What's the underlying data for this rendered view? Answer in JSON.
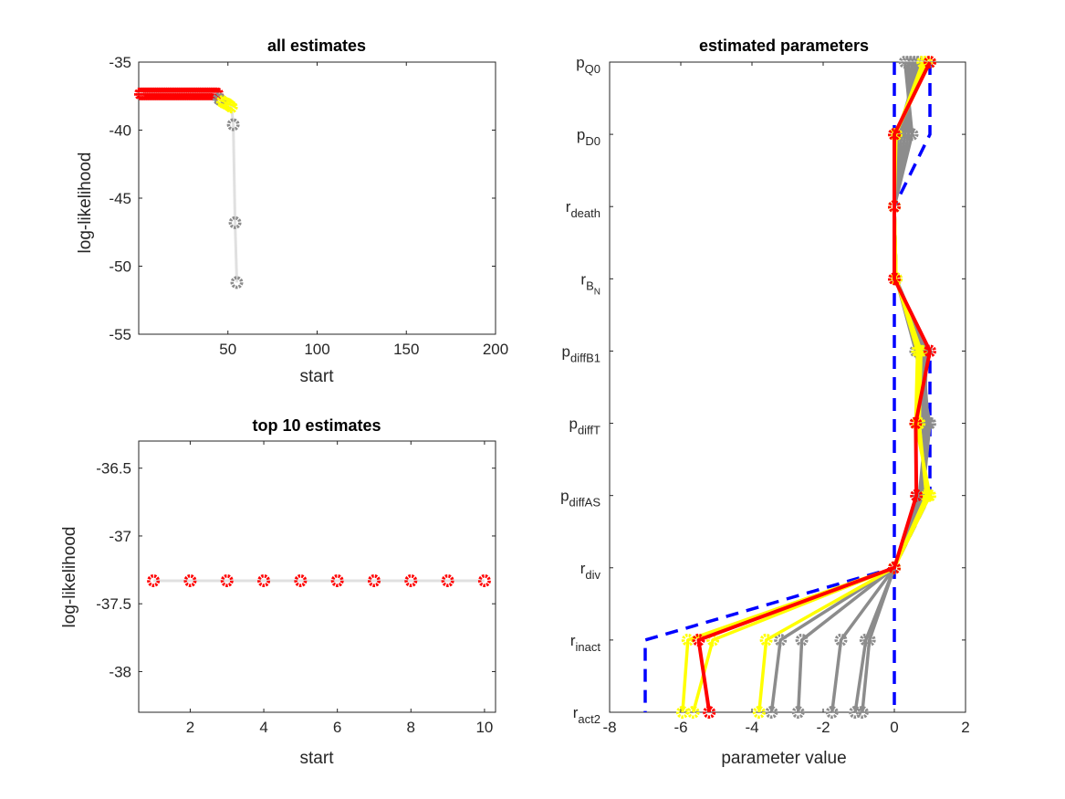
{
  "colors": {
    "red": "#ff0000",
    "yellow": "#ffff00",
    "gray": "#8c8c8c",
    "lightgray": "#e0e0e0",
    "blue": "#0000ff"
  },
  "chart_data": [
    {
      "type": "line",
      "title": "all estimates",
      "xlabel": "start",
      "ylabel": "log-likelihood",
      "xlim": [
        0,
        200
      ],
      "ylim": [
        -55,
        -35
      ],
      "xticks": [
        50,
        100,
        150,
        200
      ],
      "yticks": [
        -35,
        -40,
        -45,
        -50,
        -55
      ],
      "series": [
        {
          "color_role": "red",
          "x": [
            1,
            2,
            3,
            4,
            5,
            6,
            7,
            8,
            9,
            10,
            11,
            12,
            13,
            14,
            15,
            16,
            17,
            18,
            19,
            20,
            21,
            22,
            23,
            24,
            25,
            26,
            27,
            28,
            29,
            30,
            31,
            32,
            33,
            34,
            35,
            36,
            37,
            38,
            39,
            40,
            41,
            42,
            43,
            44
          ],
          "y": [
            -37.33,
            -37.33,
            -37.33,
            -37.33,
            -37.33,
            -37.33,
            -37.33,
            -37.33,
            -37.33,
            -37.33,
            -37.33,
            -37.33,
            -37.33,
            -37.33,
            -37.33,
            -37.33,
            -37.33,
            -37.33,
            -37.33,
            -37.33,
            -37.33,
            -37.33,
            -37.33,
            -37.33,
            -37.33,
            -37.33,
            -37.33,
            -37.33,
            -37.33,
            -37.33,
            -37.33,
            -37.33,
            -37.33,
            -37.33,
            -37.33,
            -37.33,
            -37.33,
            -37.33,
            -37.33,
            -37.33,
            -37.33,
            -37.33,
            -37.33,
            -37.33
          ]
        },
        {
          "color_role": "gray",
          "x": [
            45,
            46
          ],
          "y": [
            -37.7,
            -37.8
          ]
        },
        {
          "color_role": "yellow",
          "x": [
            47,
            48,
            49,
            50,
            51,
            52
          ],
          "y": [
            -37.9,
            -38.0,
            -38.05,
            -38.1,
            -38.2,
            -38.3
          ]
        },
        {
          "color_role": "gray",
          "x": [
            53,
            54,
            55
          ],
          "y": [
            -39.6,
            -46.8,
            -51.2
          ]
        }
      ]
    },
    {
      "type": "line",
      "title": "top 10 estimates",
      "xlabel": "start",
      "ylabel": "log-likelihood",
      "xlim": [
        0.6,
        10.3
      ],
      "ylim": [
        -38.3,
        -36.3
      ],
      "xticks": [
        2,
        4,
        6,
        8,
        10
      ],
      "yticks": [
        -36.5,
        -37,
        -37.5,
        -38
      ],
      "series": [
        {
          "color_role": "red",
          "x": [
            1,
            2,
            3,
            4,
            5,
            6,
            7,
            8,
            9,
            10
          ],
          "y": [
            -37.33,
            -37.33,
            -37.33,
            -37.33,
            -37.33,
            -37.33,
            -37.33,
            -37.33,
            -37.33,
            -37.33
          ]
        }
      ]
    },
    {
      "type": "line",
      "title": "estimated parameters",
      "xlabel": "parameter value",
      "xlim": [
        -8,
        2
      ],
      "xticks": [
        -8,
        -6,
        -4,
        -2,
        0,
        2
      ],
      "parameters": [
        {
          "base": "p",
          "sub": "Q0"
        },
        {
          "base": "p",
          "sub": "D0"
        },
        {
          "base": "r",
          "sub": "death"
        },
        {
          "base": "r",
          "sub": "B",
          "subsub": "N"
        },
        {
          "base": "p",
          "sub": "diffB1"
        },
        {
          "base": "p",
          "sub": "diffT"
        },
        {
          "base": "p",
          "sub": "diffAS"
        },
        {
          "base": "r",
          "sub": "div"
        },
        {
          "base": "r",
          "sub": "inact"
        },
        {
          "base": "r",
          "sub": "act2"
        }
      ],
      "bounds": {
        "lower": [
          0,
          0,
          0,
          0,
          0,
          0,
          0,
          0,
          0,
          0
        ],
        "upper": [
          1,
          1,
          0,
          0,
          1,
          1,
          1,
          0,
          -7,
          -7
        ]
      },
      "series": [
        {
          "color_role": "gray",
          "values": [
            0.3,
            0.5,
            0,
            0.05,
            0.6,
            1.0,
            0.8,
            0,
            -0.7,
            -0.9
          ]
        },
        {
          "color_role": "gray",
          "values": [
            0.4,
            0.4,
            0,
            0.05,
            0.7,
            0.9,
            0.7,
            0,
            -0.8,
            -1.1
          ]
        },
        {
          "color_role": "gray",
          "values": [
            0.5,
            0.3,
            0,
            0.05,
            0.8,
            0.95,
            0.75,
            0,
            -1.5,
            -1.75
          ]
        },
        {
          "color_role": "gray",
          "values": [
            0.6,
            0.2,
            0,
            0.05,
            0.9,
            0.85,
            0.85,
            0,
            -2.6,
            -2.7
          ]
        },
        {
          "color_role": "gray",
          "values": [
            0.7,
            0.1,
            0,
            0.05,
            0.75,
            0.8,
            0.9,
            0,
            -3.2,
            -3.45
          ]
        },
        {
          "color_role": "yellow",
          "values": [
            0.8,
            0.05,
            0,
            0.05,
            0.65,
            0.6,
            1.0,
            0,
            -3.6,
            -3.8
          ]
        },
        {
          "color_role": "yellow",
          "values": [
            0.9,
            0.02,
            0,
            0.05,
            0.7,
            0.65,
            0.95,
            0,
            -5.1,
            -5.65
          ]
        },
        {
          "color_role": "yellow",
          "values": [
            1.0,
            0.02,
            0,
            0.05,
            0.75,
            0.7,
            0.9,
            0,
            -5.8,
            -5.95
          ]
        },
        {
          "color_role": "red",
          "values": [
            1.0,
            0.0,
            0,
            0.0,
            1.0,
            0.6,
            0.62,
            0,
            -5.5,
            -5.2
          ]
        }
      ]
    }
  ]
}
